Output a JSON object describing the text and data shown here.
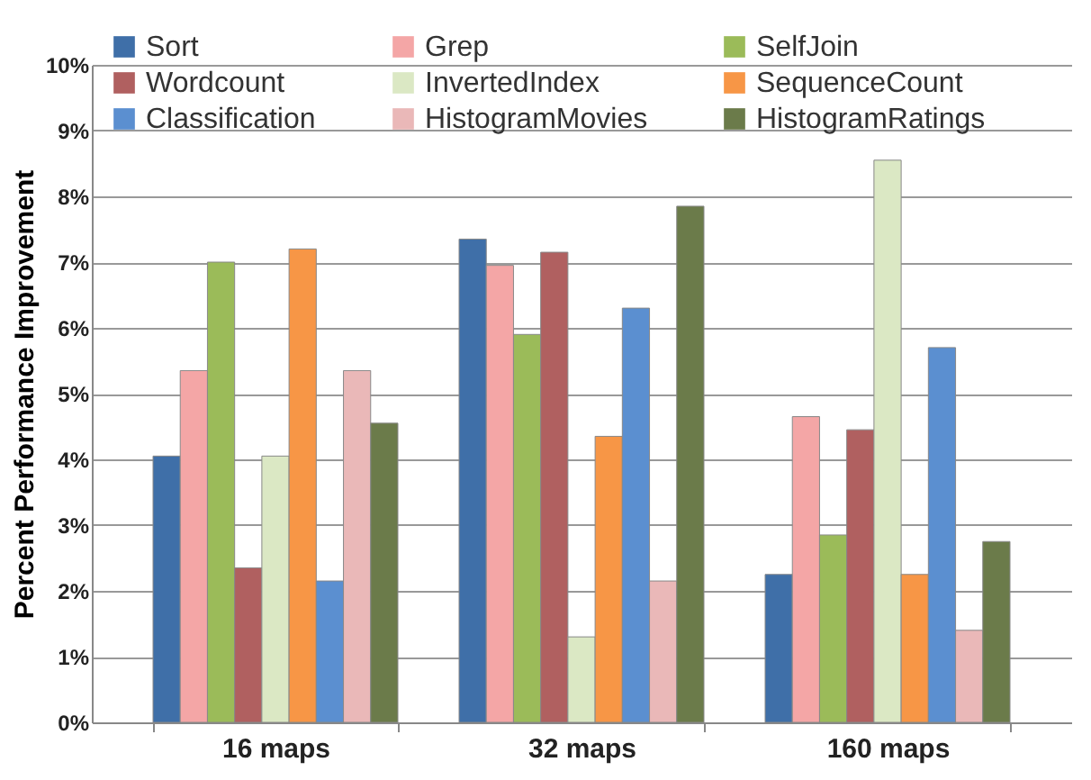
{
  "chart_data": {
    "type": "bar",
    "ylabel": "Percent Performance Improvement",
    "categories": [
      "16 maps",
      "32 maps",
      "160 maps"
    ],
    "series": [
      {
        "name": "Sort",
        "color": "#3f6fa8",
        "values": [
          4.05,
          7.35,
          2.25
        ]
      },
      {
        "name": "Grep",
        "color": "#f4a6a6",
        "values": [
          5.35,
          6.95,
          4.65
        ]
      },
      {
        "name": "SelfJoin",
        "color": "#9bbb59",
        "values": [
          7.0,
          5.9,
          2.85
        ]
      },
      {
        "name": "Wordcount",
        "color": "#b06060",
        "values": [
          2.35,
          7.15,
          4.45
        ]
      },
      {
        "name": "InvertedIndex",
        "color": "#dbe8c4",
        "values": [
          4.05,
          1.3,
          8.55
        ]
      },
      {
        "name": "SequenceCount",
        "color": "#f79646",
        "values": [
          7.2,
          4.35,
          2.25
        ]
      },
      {
        "name": "Classification",
        "color": "#5b8fd0",
        "values": [
          2.15,
          6.3,
          5.7
        ]
      },
      {
        "name": "HistogramMovies",
        "color": "#eab8b8",
        "values": [
          5.35,
          2.15,
          1.4
        ]
      },
      {
        "name": "HistogramRatings",
        "color": "#6b7b4a",
        "values": [
          4.55,
          7.85,
          2.75
        ]
      }
    ],
    "ylim": [
      0,
      10
    ],
    "yticks": [
      {
        "value": 0,
        "label": "0%"
      },
      {
        "value": 1,
        "label": "1%"
      },
      {
        "value": 2,
        "label": "2%"
      },
      {
        "value": 3,
        "label": "3%"
      },
      {
        "value": 4,
        "label": "4%"
      },
      {
        "value": 5,
        "label": "5%"
      },
      {
        "value": 6,
        "label": "6%"
      },
      {
        "value": 7,
        "label": "7%"
      },
      {
        "value": 8,
        "label": "8%"
      },
      {
        "value": 9,
        "label": "9%"
      },
      {
        "value": 10,
        "label": "10%"
      }
    ],
    "grid": "y",
    "legend": "top"
  }
}
